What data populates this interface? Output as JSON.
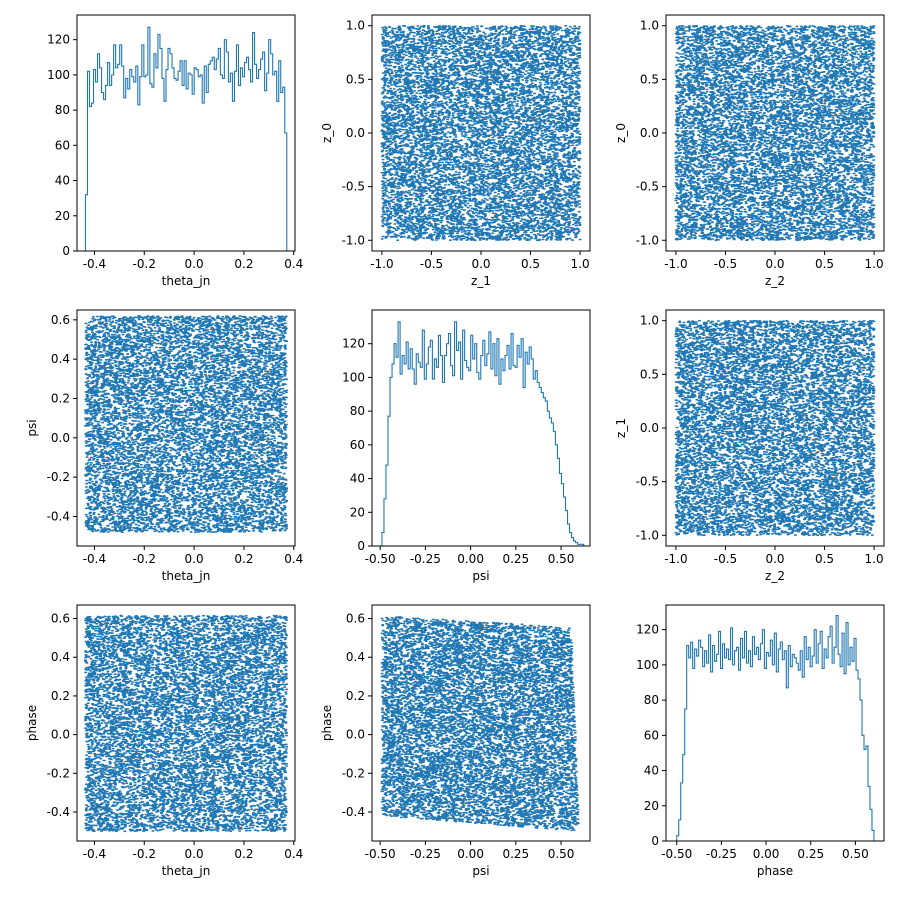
{
  "style": {
    "series_color": "#1f77b4"
  },
  "chart_data": [
    {
      "id": "p00",
      "type": "histogram",
      "xlabel": "theta_jn",
      "ylabel": "",
      "xlim": [
        -0.47,
        0.405
      ],
      "ylim": [
        0,
        134
      ],
      "xticks": [
        -0.4,
        -0.2,
        0.0,
        0.2,
        0.4
      ],
      "xtick_labels": [
        "-0.4",
        "-0.2",
        "0.0",
        "0.2",
        "0.4"
      ],
      "yticks": [
        0,
        20,
        40,
        60,
        80,
        100,
        120
      ],
      "ytick_labels": [
        "0",
        "20",
        "40",
        "60",
        "80",
        "100",
        "120"
      ],
      "bin_range": [
        -0.436,
        0.372
      ],
      "counts": [
        32,
        102,
        82,
        84,
        103,
        96,
        112,
        104,
        90,
        86,
        94,
        107,
        94,
        100,
        117,
        104,
        106,
        117,
        105,
        87,
        98,
        92,
        103,
        99,
        96,
        105,
        83,
        99,
        117,
        99,
        100,
        127,
        95,
        93,
        112,
        104,
        123,
        115,
        98,
        85,
        103,
        115,
        112,
        104,
        98,
        97,
        102,
        108,
        94,
        108,
        92,
        101,
        100,
        89,
        104,
        103,
        99,
        100,
        84,
        105,
        90,
        106,
        108,
        110,
        103,
        109,
        115,
        100,
        98,
        120,
        113,
        96,
        101,
        85,
        102,
        117,
        94,
        104,
        99,
        107,
        110,
        103,
        96,
        124,
        106,
        98,
        103,
        109,
        113,
        91,
        101,
        120,
        112,
        100,
        102,
        85,
        108,
        90,
        93,
        67
      ]
    },
    {
      "id": "p01",
      "type": "scatter",
      "xlabel": "z_1",
      "ylabel": "z_0",
      "xlim": [
        -1.1,
        1.1
      ],
      "ylim": [
        -1.1,
        1.1
      ],
      "xticks": [
        -1.0,
        -0.5,
        0.0,
        0.5,
        1.0
      ],
      "xtick_labels": [
        "-1.0",
        "-0.5",
        "0.0",
        "0.5",
        "1.0"
      ],
      "yticks": [
        -1.0,
        -0.5,
        0.0,
        0.5,
        1.0
      ],
      "ytick_labels": [
        "-1.0",
        "-0.5",
        "0.0",
        "0.5",
        "1.0"
      ],
      "x_range": [
        -1,
        1
      ],
      "y_range": [
        -1,
        1
      ],
      "n_points": 10000
    },
    {
      "id": "p02",
      "type": "scatter",
      "xlabel": "z_2",
      "ylabel": "z_0",
      "xlim": [
        -1.1,
        1.1
      ],
      "ylim": [
        -1.1,
        1.1
      ],
      "xticks": [
        -1.0,
        -0.5,
        0.0,
        0.5,
        1.0
      ],
      "xtick_labels": [
        "-1.0",
        "-0.5",
        "0.0",
        "0.5",
        "1.0"
      ],
      "yticks": [
        -1.0,
        -0.5,
        0.0,
        0.5,
        1.0
      ],
      "ytick_labels": [
        "-1.0",
        "-0.5",
        "0.0",
        "0.5",
        "1.0"
      ],
      "x_range": [
        -1,
        1
      ],
      "y_range": [
        -1,
        1
      ],
      "n_points": 10000
    },
    {
      "id": "p10",
      "type": "scatter",
      "xlabel": "theta_jn",
      "ylabel": "psi",
      "xlim": [
        -0.47,
        0.405
      ],
      "ylim": [
        -0.55,
        0.65
      ],
      "xticks": [
        -0.4,
        -0.2,
        0.0,
        0.2,
        0.4
      ],
      "xtick_labels": [
        "-0.4",
        "-0.2",
        "0.0",
        "0.2",
        "0.4"
      ],
      "yticks": [
        -0.4,
        -0.2,
        0.0,
        0.2,
        0.4,
        0.6
      ],
      "ytick_labels": [
        "-0.4",
        "-0.2",
        "0.0",
        "0.2",
        "0.4",
        "0.6"
      ],
      "x_range": [
        -0.436,
        0.372
      ],
      "y_range": [
        -0.48,
        0.62
      ],
      "n_points": 10000
    },
    {
      "id": "p11",
      "type": "histogram",
      "xlabel": "psi",
      "ylabel": "",
      "xlim": [
        -0.545,
        0.66
      ],
      "ylim": [
        0,
        140
      ],
      "xticks": [
        -0.5,
        -0.25,
        0.0,
        0.25,
        0.5
      ],
      "xtick_labels": [
        "-0.50",
        "-0.25",
        "0.00",
        "0.25",
        "0.50"
      ],
      "yticks": [
        0,
        20,
        40,
        60,
        80,
        100,
        120
      ],
      "ytick_labels": [
        "0",
        "20",
        "40",
        "60",
        "80",
        "100",
        "120"
      ],
      "bin_range": [
        -0.49,
        0.625
      ],
      "counts": [
        8,
        28,
        48,
        77,
        100,
        108,
        120,
        112,
        133,
        102,
        113,
        108,
        121,
        105,
        117,
        105,
        96,
        114,
        109,
        106,
        128,
        99,
        108,
        118,
        122,
        99,
        111,
        106,
        125,
        113,
        97,
        113,
        120,
        126,
        107,
        101,
        133,
        116,
        121,
        99,
        128,
        110,
        106,
        104,
        125,
        111,
        120,
        103,
        99,
        113,
        122,
        107,
        114,
        127,
        105,
        120,
        101,
        123,
        96,
        111,
        104,
        113,
        119,
        105,
        126,
        107,
        106,
        119,
        112,
        123,
        94,
        115,
        108,
        118,
        111,
        99,
        104,
        97,
        94,
        91,
        88,
        86,
        80,
        76,
        73,
        68,
        60,
        52,
        43,
        37,
        29,
        21,
        13,
        8,
        5,
        3,
        2,
        1,
        1,
        1
      ]
    },
    {
      "id": "p12",
      "type": "scatter",
      "xlabel": "z_2",
      "ylabel": "z_1",
      "xlim": [
        -1.1,
        1.1
      ],
      "ylim": [
        -1.1,
        1.1
      ],
      "xticks": [
        -1.0,
        -0.5,
        0.0,
        0.5,
        1.0
      ],
      "xtick_labels": [
        "-1.0",
        "-0.5",
        "0.0",
        "0.5",
        "1.0"
      ],
      "yticks": [
        -1.0,
        -0.5,
        0.0,
        0.5,
        1.0
      ],
      "ytick_labels": [
        "-1.0",
        "-0.5",
        "0.0",
        "0.5",
        "1.0"
      ],
      "x_range": [
        -1,
        1
      ],
      "y_range": [
        -1,
        1
      ],
      "n_points": 10000
    },
    {
      "id": "p20",
      "type": "scatter",
      "xlabel": "theta_jn",
      "ylabel": "phase",
      "xlim": [
        -0.47,
        0.405
      ],
      "ylim": [
        -0.55,
        0.67
      ],
      "xticks": [
        -0.4,
        -0.2,
        0.0,
        0.2,
        0.4
      ],
      "xtick_labels": [
        "-0.4",
        "-0.2",
        "0.0",
        "0.2",
        "0.4"
      ],
      "yticks": [
        -0.4,
        -0.2,
        0.0,
        0.2,
        0.4,
        0.6
      ],
      "ytick_labels": [
        "-0.4",
        "-0.2",
        "0.0",
        "0.2",
        "0.4",
        "0.6"
      ],
      "x_range": [
        -0.436,
        0.372
      ],
      "y_range": [
        -0.5,
        0.615
      ],
      "n_points": 10000
    },
    {
      "id": "p21",
      "type": "scatter",
      "xlabel": "psi",
      "ylabel": "phase",
      "xlim": [
        -0.545,
        0.66
      ],
      "ylim": [
        -0.55,
        0.67
      ],
      "xticks": [
        -0.5,
        -0.25,
        0.0,
        0.25,
        0.5
      ],
      "xtick_labels": [
        "-0.50",
        "-0.25",
        "0.00",
        "0.25",
        "0.50"
      ],
      "yticks": [
        -0.4,
        -0.2,
        0.0,
        0.2,
        0.4,
        0.6
      ],
      "ytick_labels": [
        "-0.4",
        "-0.2",
        "0.0",
        "0.2",
        "0.4",
        "0.6"
      ],
      "x_range": [
        -0.49,
        0.625
      ],
      "n_points": 10000,
      "region_corners": [
        [
          -0.49,
          -0.42
        ],
        [
          -0.49,
          0.615
        ],
        [
          0.555,
          0.555
        ],
        [
          0.6,
          -0.5
        ]
      ]
    },
    {
      "id": "p22",
      "type": "histogram",
      "xlabel": "phase",
      "ylabel": "",
      "xlim": [
        -0.56,
        0.66
      ],
      "ylim": [
        0,
        134
      ],
      "xticks": [
        -0.5,
        -0.25,
        0.0,
        0.25,
        0.5
      ],
      "xtick_labels": [
        "-0.50",
        "-0.25",
        "0.00",
        "0.25",
        "0.50"
      ],
      "yticks": [
        0,
        20,
        40,
        60,
        80,
        100,
        120
      ],
      "ytick_labels": [
        "0",
        "20",
        "40",
        "60",
        "80",
        "100",
        "120"
      ],
      "bin_range": [
        -0.5,
        0.615
      ],
      "counts": [
        3,
        12,
        33,
        49,
        75,
        111,
        104,
        113,
        98,
        109,
        105,
        114,
        110,
        99,
        108,
        101,
        117,
        96,
        111,
        102,
        106,
        119,
        98,
        112,
        104,
        109,
        103,
        121,
        100,
        108,
        110,
        97,
        115,
        104,
        119,
        101,
        108,
        99,
        116,
        106,
        110,
        103,
        112,
        120,
        98,
        107,
        105,
        114,
        100,
        118,
        96,
        109,
        113,
        103,
        108,
        87,
        111,
        99,
        106,
        104,
        101,
        97,
        108,
        93,
        116,
        103,
        110,
        99,
        105,
        120,
        101,
        112,
        119,
        98,
        109,
        104,
        116,
        122,
        101,
        110,
        128,
        106,
        99,
        118,
        95,
        124,
        100,
        110,
        102,
        115,
        97,
        92,
        80,
        60,
        52,
        54,
        31,
        18,
        6,
        0
      ]
    }
  ]
}
